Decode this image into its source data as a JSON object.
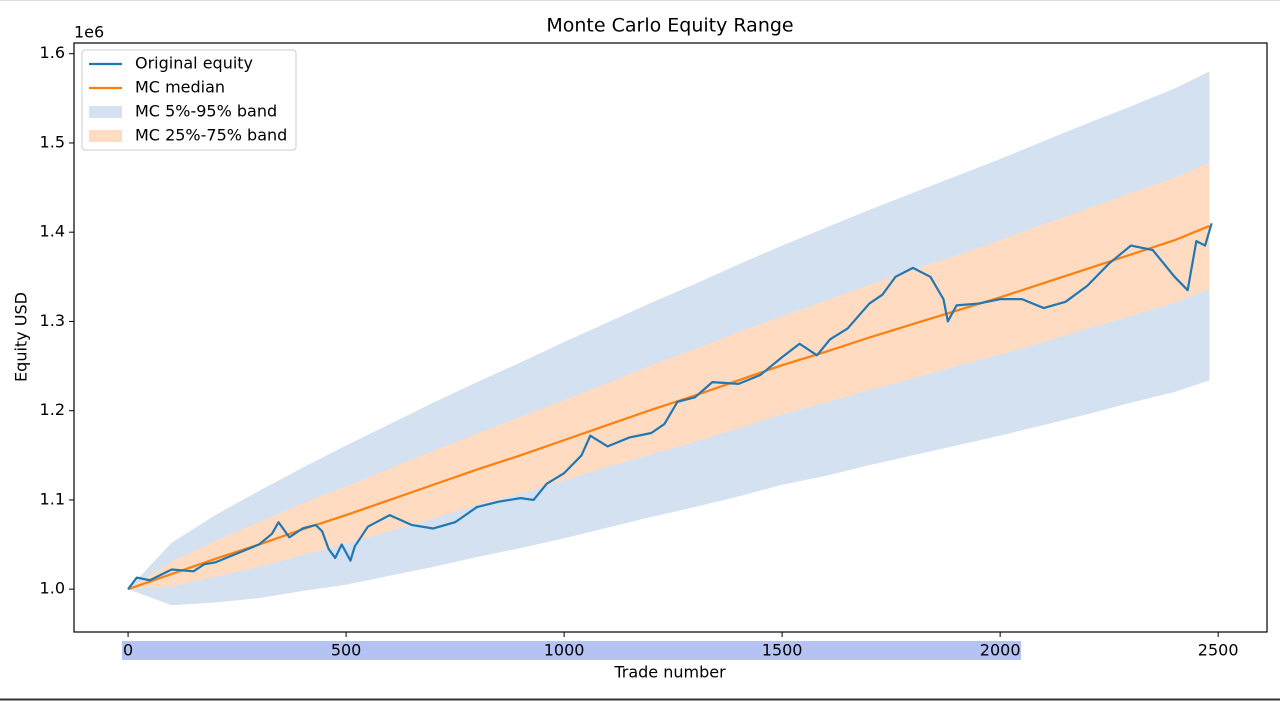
{
  "chart_data": {
    "type": "line",
    "title": "Monte Carlo Equity Range",
    "xlabel": "Trade number",
    "ylabel": "Equity USD",
    "offset_text": "1e6",
    "legend": "upper left",
    "x": [
      0,
      100,
      200,
      300,
      400,
      500,
      600,
      700,
      800,
      900,
      1000,
      1100,
      1200,
      1300,
      1400,
      1500,
      1600,
      1700,
      1800,
      1900,
      2000,
      2100,
      2200,
      2300,
      2400,
      2480
    ],
    "series": [
      {
        "name": "Original equity",
        "type": "line",
        "color": "#1f77b4",
        "x": [
          0,
          20,
          50,
          100,
          150,
          175,
          200,
          250,
          300,
          330,
          345,
          370,
          400,
          430,
          445,
          460,
          475,
          490,
          510,
          520,
          550,
          600,
          650,
          700,
          750,
          800,
          850,
          900,
          930,
          960,
          1000,
          1040,
          1060,
          1100,
          1150,
          1200,
          1230,
          1260,
          1300,
          1340,
          1400,
          1450,
          1500,
          1540,
          1580,
          1610,
          1650,
          1700,
          1730,
          1760,
          1800,
          1840,
          1870,
          1880,
          1900,
          1950,
          2000,
          2050,
          2100,
          2150,
          2200,
          2250,
          2300,
          2350,
          2400,
          2430,
          2450,
          2470,
          2485
        ],
        "values": [
          1000000,
          1013000,
          1010000,
          1022000,
          1020000,
          1028000,
          1030000,
          1040000,
          1050000,
          1062000,
          1075000,
          1058000,
          1068000,
          1072000,
          1065000,
          1045000,
          1035000,
          1050000,
          1032000,
          1048000,
          1070000,
          1083000,
          1072000,
          1068000,
          1075000,
          1092000,
          1098000,
          1102000,
          1100000,
          1118000,
          1130000,
          1150000,
          1172000,
          1160000,
          1170000,
          1175000,
          1185000,
          1210000,
          1215000,
          1232000,
          1230000,
          1240000,
          1260000,
          1275000,
          1262000,
          1280000,
          1292000,
          1320000,
          1330000,
          1350000,
          1360000,
          1350000,
          1325000,
          1300000,
          1318000,
          1320000,
          1325000,
          1325000,
          1315000,
          1322000,
          1340000,
          1365000,
          1385000,
          1380000,
          1350000,
          1335000,
          1390000,
          1385000,
          1410000
        ]
      },
      {
        "name": "MC median",
        "type": "line",
        "color": "#ff7f0e",
        "values": [
          1000000,
          1017000,
          1034000,
          1050000,
          1067000,
          1083000,
          1100000,
          1117000,
          1134000,
          1150000,
          1167000,
          1184000,
          1201000,
          1217000,
          1234000,
          1251000,
          1266000,
          1282000,
          1297000,
          1312000,
          1327000,
          1343000,
          1359000,
          1375000,
          1391000,
          1407000
        ]
      },
      {
        "name": "MC 5%-95% band",
        "type": "band",
        "color": "#d4e1f0",
        "lower": [
          1000000,
          982000,
          985000,
          990000,
          998000,
          1005000,
          1015000,
          1025000,
          1036000,
          1046000,
          1057000,
          1069000,
          1081000,
          1092000,
          1104000,
          1117000,
          1127000,
          1139000,
          1150000,
          1161000,
          1172000,
          1184000,
          1196000,
          1209000,
          1221000,
          1234000
        ],
        "upper": [
          1000000,
          1052000,
          1083000,
          1110000,
          1136000,
          1161000,
          1185000,
          1209000,
          1232000,
          1254000,
          1277000,
          1299000,
          1321000,
          1342000,
          1364000,
          1385000,
          1405000,
          1425000,
          1444000,
          1463000,
          1482000,
          1502000,
          1522000,
          1541000,
          1561000,
          1580000
        ]
      },
      {
        "name": "MC 25%-75% band",
        "type": "band",
        "color": "#ffdcc1",
        "lower": [
          1000000,
          1003000,
          1014000,
          1025000,
          1038000,
          1051000,
          1065000,
          1079000,
          1094000,
          1107000,
          1122000,
          1137000,
          1151000,
          1165000,
          1180000,
          1196000,
          1209000,
          1223000,
          1236000,
          1250000,
          1263000,
          1277000,
          1292000,
          1306000,
          1321000,
          1336000
        ],
        "upper": [
          1000000,
          1031000,
          1054000,
          1075000,
          1096000,
          1115000,
          1135000,
          1155000,
          1174000,
          1193000,
          1212000,
          1231000,
          1251000,
          1269000,
          1288000,
          1306000,
          1323000,
          1341000,
          1358000,
          1374000,
          1391000,
          1409000,
          1426000,
          1444000,
          1461000,
          1478000
        ]
      }
    ],
    "xlim": [
      -124,
      2612
    ],
    "ylim": [
      952000,
      1612000
    ],
    "xticks": [
      0,
      500,
      1000,
      1500,
      2000,
      2500
    ],
    "yticks": [
      {
        "value": 1000000,
        "label": "1.0"
      },
      {
        "value": 1100000,
        "label": "1.1"
      },
      {
        "value": 1200000,
        "label": "1.2"
      },
      {
        "value": 1300000,
        "label": "1.3"
      },
      {
        "value": 1400000,
        "label": "1.4"
      },
      {
        "value": 1500000,
        "label": "1.5"
      },
      {
        "value": 1600000,
        "label": "1.6"
      }
    ]
  }
}
